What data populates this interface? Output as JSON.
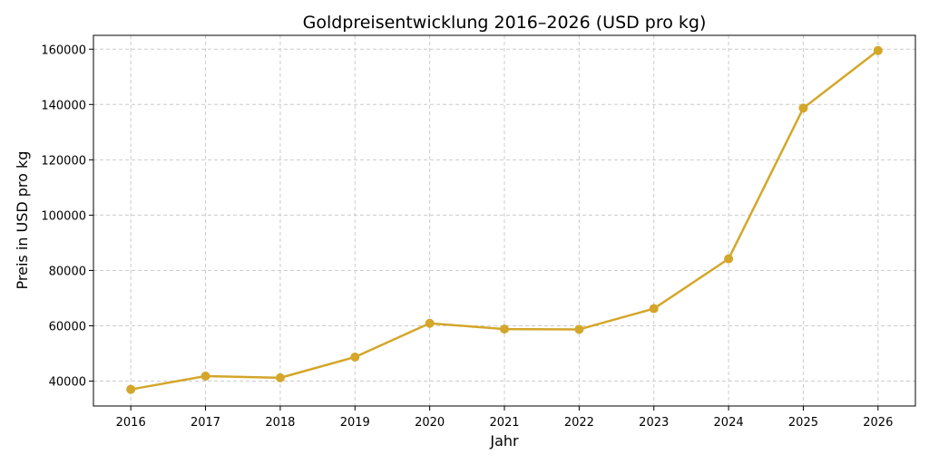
{
  "chart_data": {
    "type": "line",
    "title": "Goldpreisentwicklung 2016–2026 (USD pro kg)",
    "xlabel": "Jahr",
    "ylabel": "Preis in USD pro kg",
    "x": [
      2016,
      2017,
      2018,
      2019,
      2020,
      2021,
      2022,
      2023,
      2024,
      2025,
      2026
    ],
    "series": [
      {
        "values": [
          37000,
          41800,
          41200,
          48700,
          60900,
          58800,
          58700,
          66200,
          84200,
          138700,
          159500
        ],
        "color": "#D4A62A"
      }
    ],
    "xlim": [
      2015.5,
      2026.5
    ],
    "ylim": [
      31000,
      165000
    ],
    "yticks": [
      40000,
      60000,
      80000,
      100000,
      120000,
      140000,
      160000
    ],
    "xticks": [
      2016,
      2017,
      2018,
      2019,
      2020,
      2021,
      2022,
      2023,
      2024,
      2025,
      2026
    ],
    "grid": true,
    "marker": "circle"
  }
}
